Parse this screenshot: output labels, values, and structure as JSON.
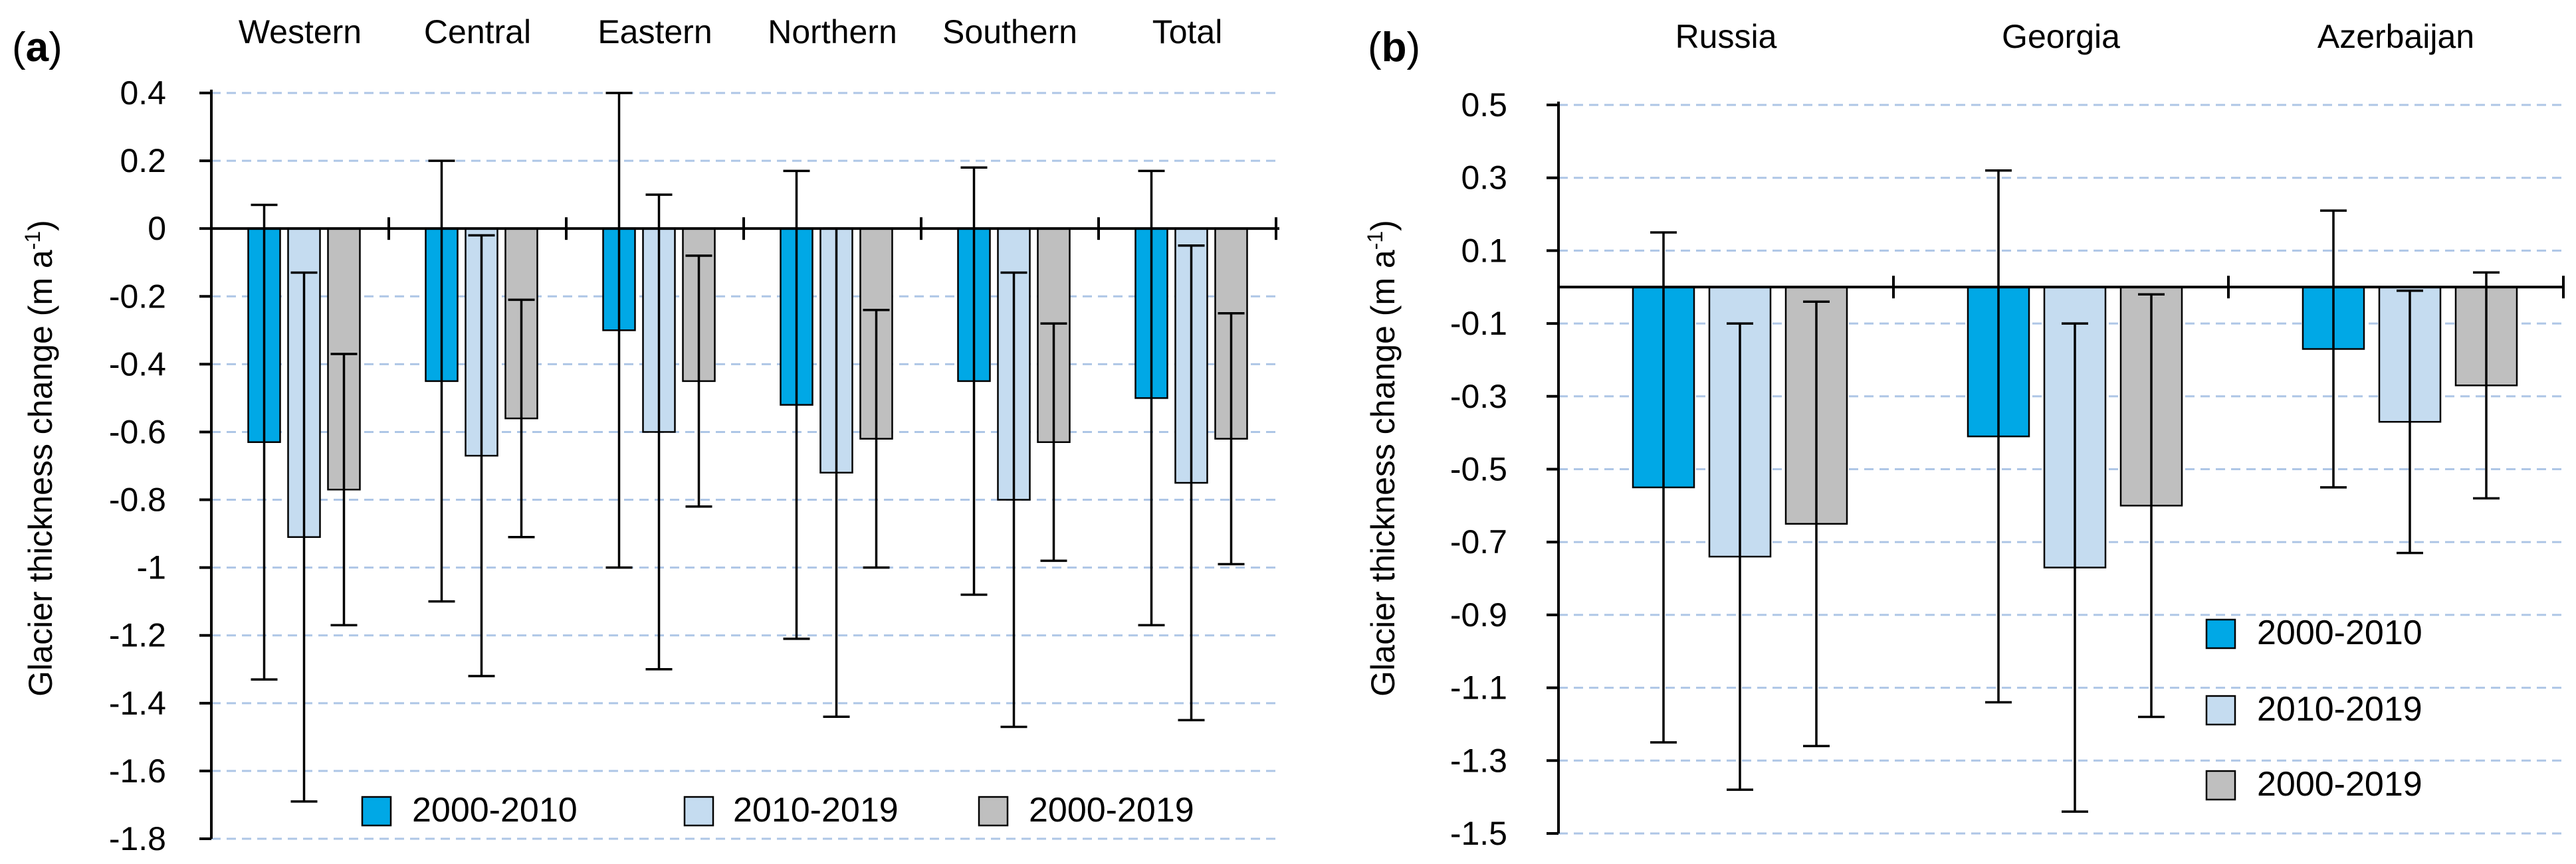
{
  "colors": {
    "series_2000_2010": "#00a8e6",
    "series_2010_2019": "#c5dcf0",
    "series_2000_2019": "#bfbfbf",
    "gridline": "#aec6e6",
    "axis": "#000000"
  },
  "chart_data": [
    {
      "type": "bar",
      "panel_label": "(a)",
      "panel_letter": "a",
      "ylabel_main": "Glacier thickness change (m a",
      "ylabel_sup": "-1",
      "ylabel_end": ")",
      "ylim": [
        -1.8,
        0.4
      ],
      "yticks": [
        0.4,
        0.2,
        0,
        -0.2,
        -0.4,
        -0.6,
        -0.8,
        -1,
        -1.2,
        -1.4,
        -1.6,
        -1.8
      ],
      "ytick_labels": [
        "0.4",
        "0.2",
        "0",
        "-0.2",
        "-0.4",
        "-0.6",
        "-0.8",
        "-1",
        "-1.2",
        "-1.4",
        "-1.6",
        "-1.8"
      ],
      "grid": true,
      "legend_position": "bottom",
      "categories": [
        "Western",
        "Central",
        "Eastern",
        "Northern",
        "Southern",
        "Total"
      ],
      "series": [
        {
          "name": "2000-2010",
          "values": [
            -0.63,
            -0.45,
            -0.3,
            -0.52,
            -0.45,
            -0.5
          ],
          "err_low": [
            -1.33,
            -1.1,
            -1.0,
            -1.21,
            -1.08,
            -1.17
          ],
          "err_high": [
            0.07,
            0.2,
            0.4,
            0.17,
            0.18,
            0.17
          ]
        },
        {
          "name": "2010-2019",
          "values": [
            -0.91,
            -0.67,
            -0.6,
            -0.72,
            -0.8,
            -0.75
          ],
          "err_low": [
            -1.69,
            -1.32,
            -1.3,
            -1.44,
            -1.47,
            -1.45
          ],
          "err_high": [
            -0.13,
            -0.02,
            0.1,
            0.0,
            -0.13,
            -0.05
          ]
        },
        {
          "name": "2000-2019",
          "values": [
            -0.77,
            -0.56,
            -0.45,
            -0.62,
            -0.63,
            -0.62
          ],
          "err_low": [
            -1.17,
            -0.91,
            -0.82,
            -1.0,
            -0.98,
            -0.99
          ],
          "err_high": [
            -0.37,
            -0.21,
            -0.08,
            -0.24,
            -0.28,
            -0.25
          ]
        }
      ]
    },
    {
      "type": "bar",
      "panel_label": "(b)",
      "panel_letter": "b",
      "ylabel_main": "Glacier thickness change (m a",
      "ylabel_sup": "-1",
      "ylabel_end": ")",
      "ylim": [
        -1.5,
        0.5
      ],
      "yticks": [
        0.5,
        0.3,
        0.1,
        -0.1,
        -0.3,
        -0.5,
        -0.7,
        -0.9,
        -1.1,
        -1.3,
        -1.5
      ],
      "ytick_labels": [
        "0.5",
        "0.3",
        "0.1",
        "-0.1",
        "-0.3",
        "-0.5",
        "-0.7",
        "-0.9",
        "-1.1",
        "-1.3",
        "-1.5"
      ],
      "grid": true,
      "legend_position": "bottom-right",
      "categories": [
        "Russia",
        "Georgia",
        "Azerbaijan"
      ],
      "series": [
        {
          "name": "2000-2010",
          "values": [
            -0.55,
            -0.41,
            -0.17
          ],
          "err_low": [
            -1.25,
            -1.14,
            -0.55
          ],
          "err_high": [
            0.15,
            0.32,
            0.21
          ]
        },
        {
          "name": "2010-2019",
          "values": [
            -0.74,
            -0.77,
            -0.37
          ],
          "err_low": [
            -1.38,
            -1.44,
            -0.73
          ],
          "err_high": [
            -0.1,
            -0.1,
            -0.01
          ]
        },
        {
          "name": "2000-2019",
          "values": [
            -0.65,
            -0.6,
            -0.27
          ],
          "err_low": [
            -1.26,
            -1.18,
            -0.58
          ],
          "err_high": [
            -0.04,
            -0.02,
            0.04
          ]
        }
      ]
    }
  ]
}
